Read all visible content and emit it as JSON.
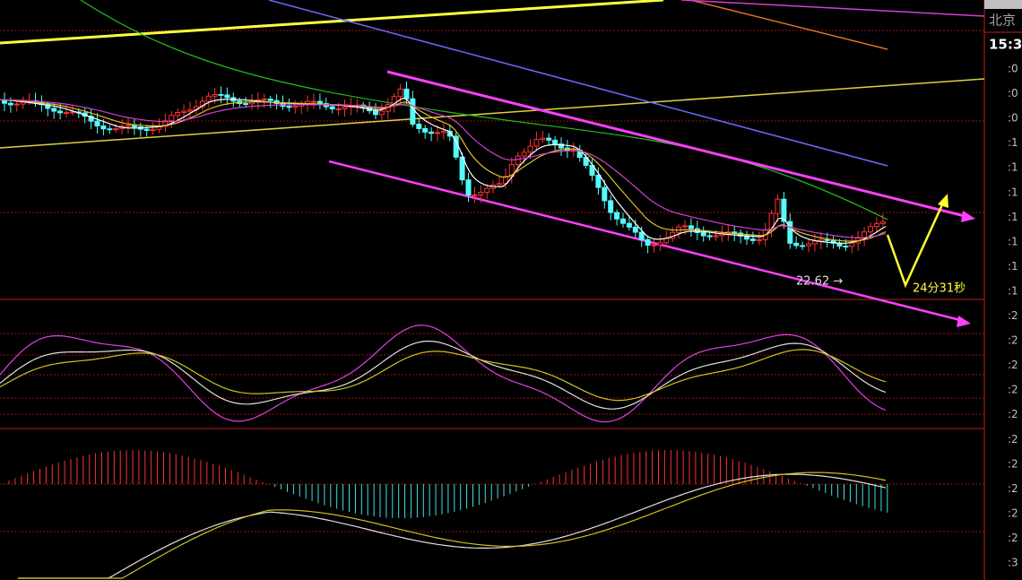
{
  "side_panel": {
    "region": "北京",
    "time": "15:3",
    "axis_labels": [
      ":0",
      ":0",
      ":0",
      ":1",
      ":1",
      ":1",
      ":1",
      ":1",
      ":1",
      ":1",
      ":2",
      ":2",
      ":2",
      ":2",
      ":2",
      ":2",
      ":2",
      ":2",
      ":2",
      ":2",
      ":3"
    ]
  },
  "annotations": {
    "low_marker": "22.62 →",
    "countdown": "24分31秒"
  }
}
